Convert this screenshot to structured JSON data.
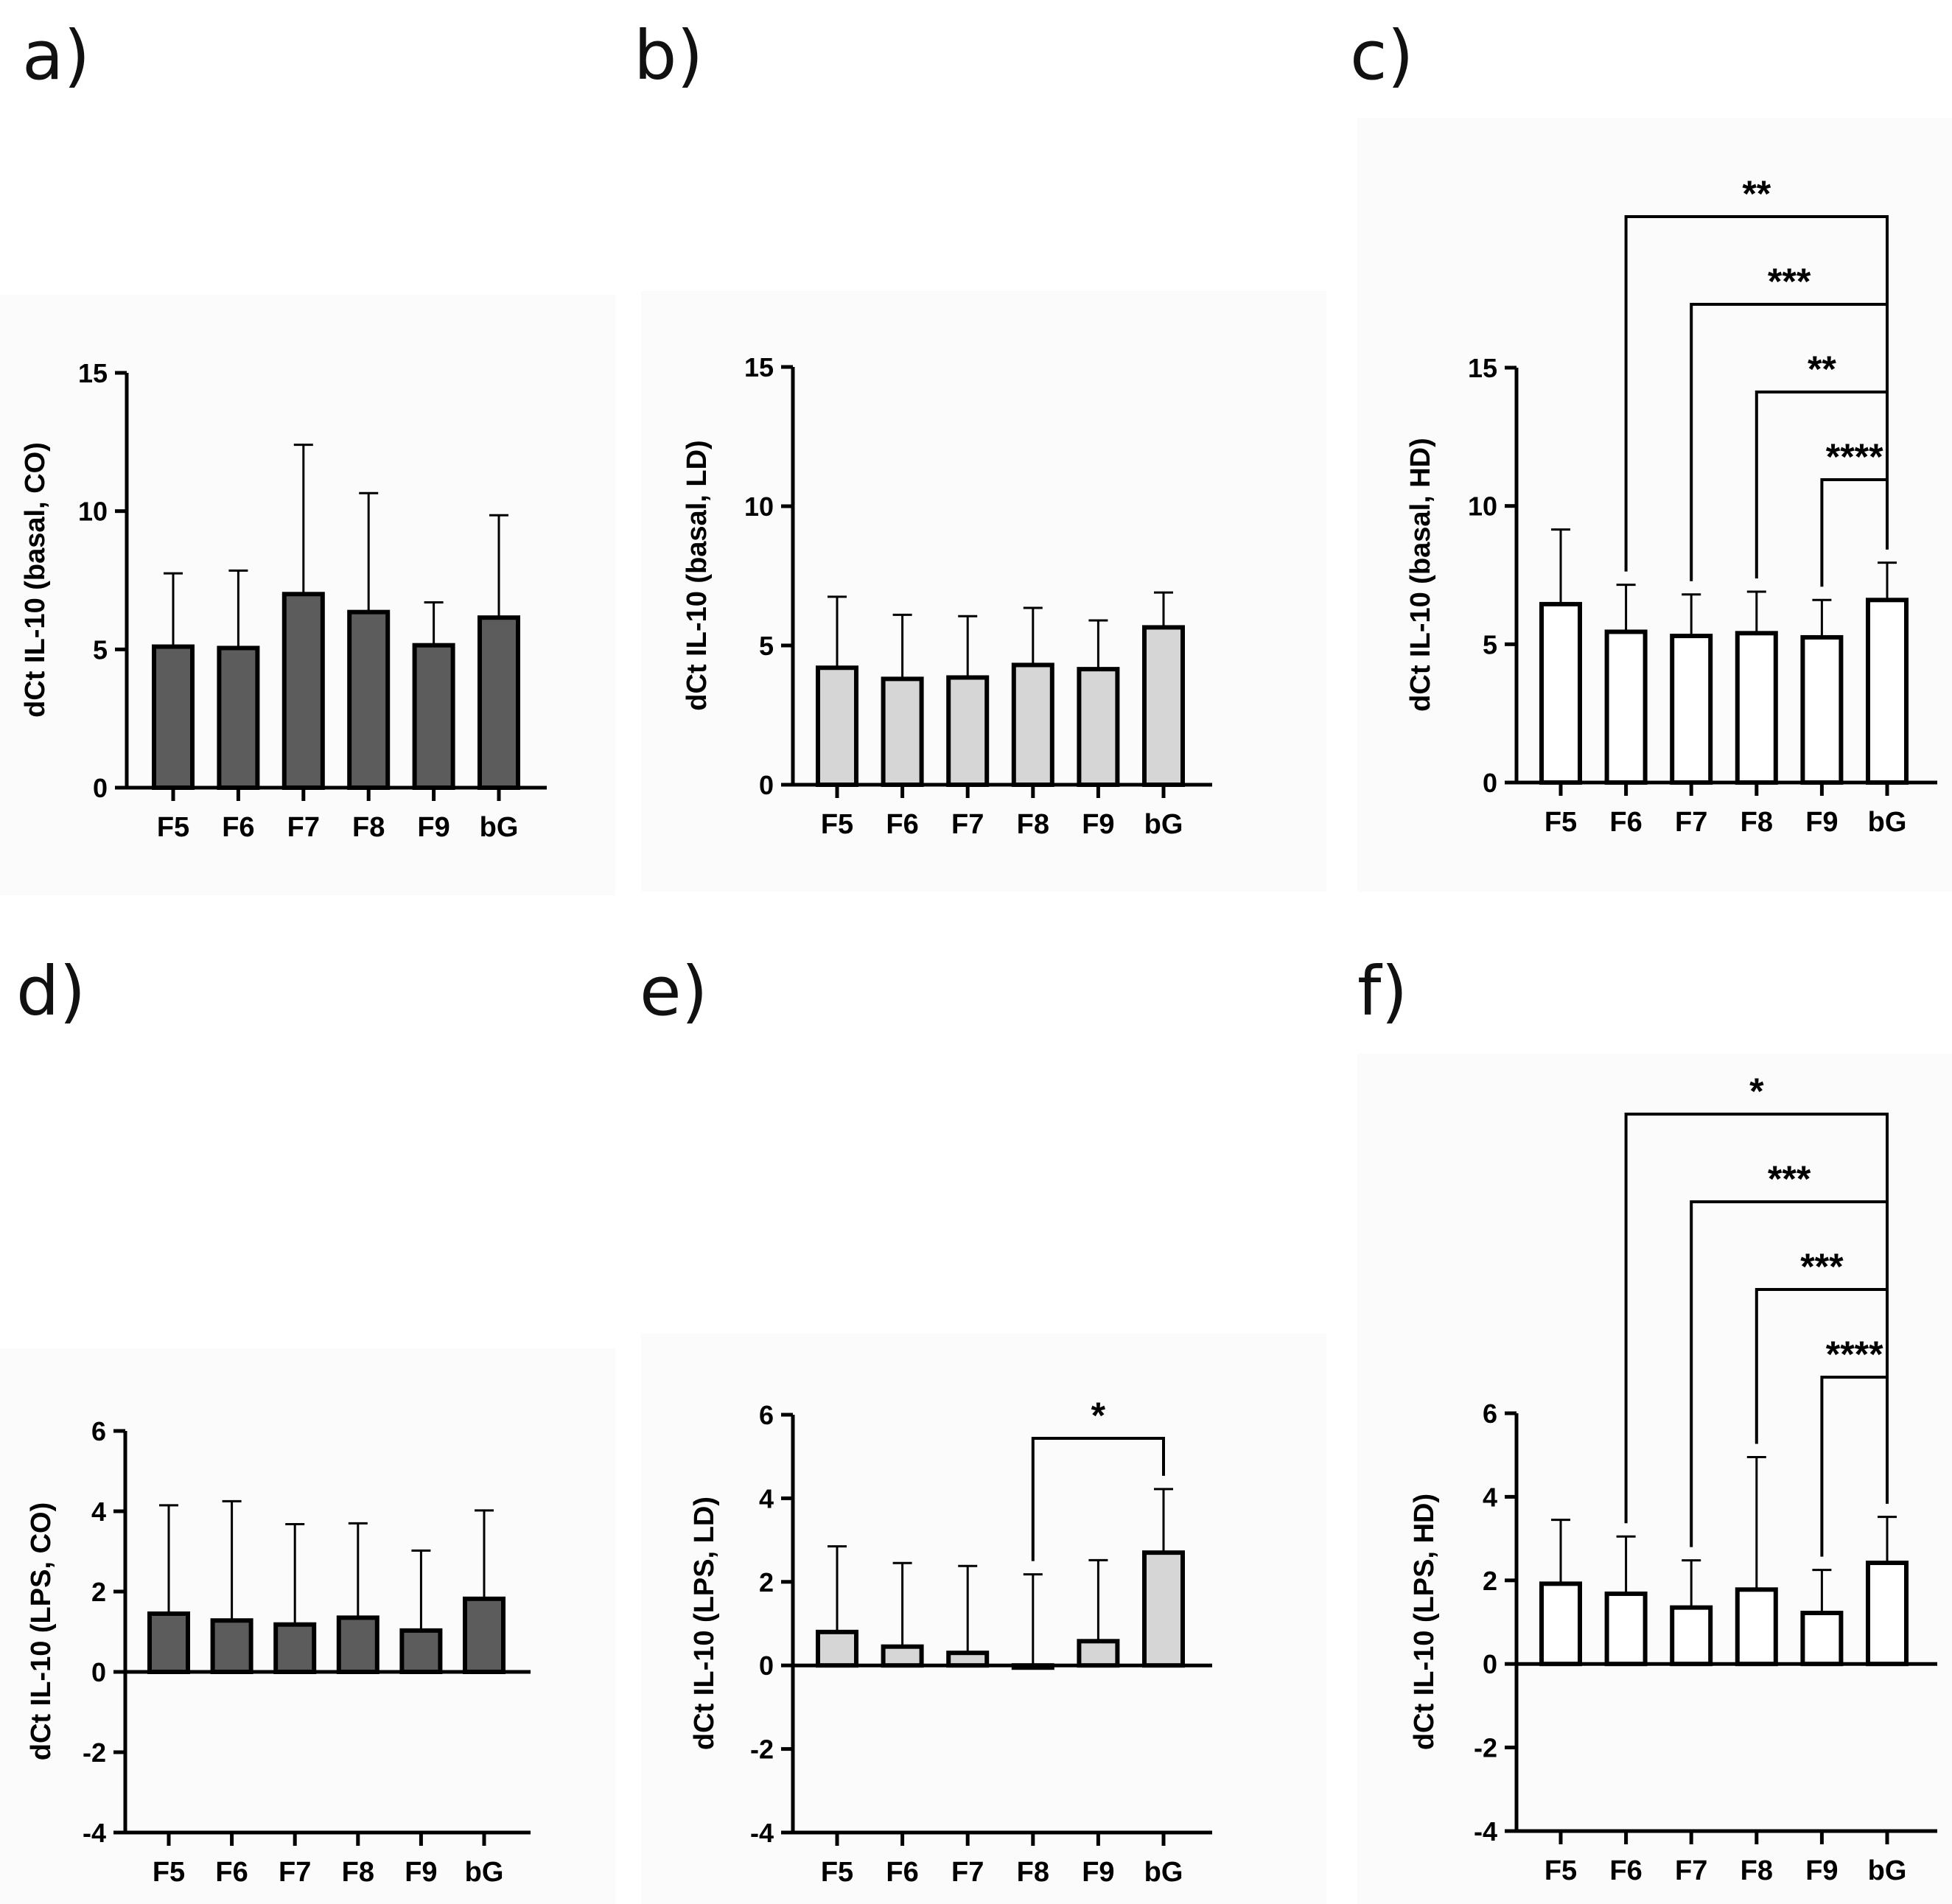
{
  "figure": {
    "colors": {
      "dark_gray": "#5c5c5c",
      "light_gray": "#d6d6d6",
      "white": "#ffffff",
      "ink": "#000000"
    }
  },
  "chart_data": [
    {
      "panel": "a)",
      "type": "bar",
      "categories": [
        "F5",
        "F6",
        "F7",
        "F8",
        "F9",
        "bG"
      ],
      "values": [
        5.1,
        5.05,
        7.0,
        6.35,
        5.15,
        6.15
      ],
      "error_upper": [
        7.75,
        7.85,
        12.4,
        10.65,
        6.7,
        9.85
      ],
      "ylabel": "dCt IL-10 (basal, CO)",
      "ylim": [
        0,
        15
      ],
      "yticks": [
        0,
        5,
        10,
        15
      ],
      "fill": "dark_gray",
      "significance": []
    },
    {
      "panel": "b)",
      "type": "bar",
      "categories": [
        "F5",
        "F6",
        "F7",
        "F8",
        "F9",
        "bG"
      ],
      "values": [
        4.2,
        3.8,
        3.85,
        4.3,
        4.15,
        5.65
      ],
      "error_upper": [
        6.75,
        6.1,
        6.05,
        6.35,
        5.9,
        6.9
      ],
      "ylabel": "dCt IL-10 (basal, LD)",
      "ylim": [
        0,
        15
      ],
      "yticks": [
        0,
        5,
        10,
        15
      ],
      "fill": "light_gray",
      "significance": []
    },
    {
      "panel": "c)",
      "type": "bar",
      "categories": [
        "F5",
        "F6",
        "F7",
        "F8",
        "F9",
        "bG"
      ],
      "values": [
        6.45,
        5.45,
        5.3,
        5.4,
        5.25,
        6.6
      ],
      "error_upper": [
        9.15,
        7.15,
        6.8,
        6.9,
        6.6,
        7.95
      ],
      "ylabel": "dCt IL-10 (basal, HD)",
      "ylim": [
        0,
        15
      ],
      "yticks": [
        0,
        5,
        10,
        15
      ],
      "fill": "white",
      "significance": [
        {
          "from": "F6",
          "to": "bG",
          "label": "**"
        },
        {
          "from": "F7",
          "to": "bG",
          "label": "***"
        },
        {
          "from": "F8",
          "to": "bG",
          "label": "**"
        },
        {
          "from": "F9",
          "to": "bG",
          "label": "****"
        }
      ]
    },
    {
      "panel": "d)",
      "type": "bar",
      "categories": [
        "F5",
        "F6",
        "F7",
        "F8",
        "F9",
        "bG"
      ],
      "values": [
        1.45,
        1.28,
        1.18,
        1.35,
        1.03,
        1.82
      ],
      "error_upper": [
        4.15,
        4.25,
        3.68,
        3.7,
        3.02,
        4.02
      ],
      "ylabel": "dCt IL-10 (LPS, CO)",
      "ylim": [
        -4,
        6
      ],
      "yticks": [
        -4,
        -2,
        0,
        2,
        4,
        6
      ],
      "fill": "dark_gray",
      "significance": []
    },
    {
      "panel": "e)",
      "type": "bar",
      "categories": [
        "F5",
        "F6",
        "F7",
        "F8",
        "F9",
        "bG"
      ],
      "values": [
        0.8,
        0.45,
        0.3,
        -0.05,
        0.58,
        2.7
      ],
      "error_upper": [
        2.85,
        2.45,
        2.38,
        2.18,
        2.52,
        4.22
      ],
      "ylabel": "dCt IL-10 (LPS, LD)",
      "ylim": [
        -4,
        6
      ],
      "yticks": [
        -4,
        -2,
        0,
        2,
        4,
        6
      ],
      "fill": "light_gray",
      "significance": [
        {
          "from": "F8",
          "to": "bG",
          "label": "*"
        }
      ]
    },
    {
      "panel": "f)",
      "type": "bar",
      "categories": [
        "F5",
        "F6",
        "F7",
        "F8",
        "F9",
        "bG"
      ],
      "values": [
        1.92,
        1.68,
        1.35,
        1.78,
        1.22,
        2.42
      ],
      "error_upper": [
        3.45,
        3.05,
        2.48,
        4.95,
        2.25,
        3.52
      ],
      "ylabel": "dCt IL-10 (LPS, HD)",
      "ylim": [
        -4,
        6
      ],
      "yticks": [
        -4,
        -2,
        0,
        2,
        4,
        6
      ],
      "fill": "white",
      "significance": [
        {
          "from": "F6",
          "to": "bG",
          "label": "*"
        },
        {
          "from": "F7",
          "to": "bG",
          "label": "***"
        },
        {
          "from": "F8",
          "to": "bG",
          "label": "***"
        },
        {
          "from": "F9",
          "to": "bG",
          "label": "****"
        }
      ]
    }
  ]
}
